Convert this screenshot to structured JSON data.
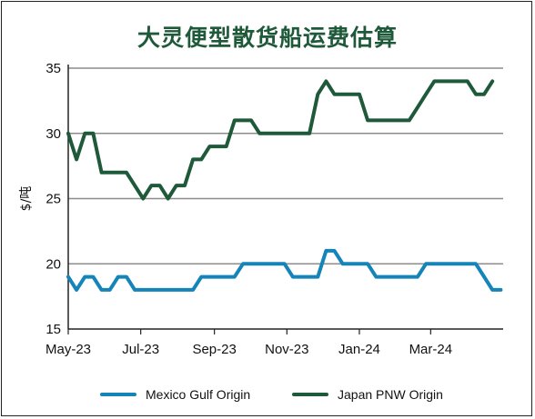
{
  "chart_data": {
    "type": "line",
    "title": "大灵便型散货船运费估算",
    "ylabel": "$/吨",
    "xlabel": "",
    "ylim": [
      15,
      35
    ],
    "yticks": [
      15,
      20,
      25,
      30,
      35
    ],
    "x_start": "2023-05-01",
    "x_end": "2024-05-01",
    "xticks": [
      {
        "date": "2023-05-01",
        "label": "May-23"
      },
      {
        "date": "2023-07-01",
        "label": "Jul-23"
      },
      {
        "date": "2023-09-01",
        "label": "Sep-23"
      },
      {
        "date": "2023-11-01",
        "label": "Nov-23"
      },
      {
        "date": "2024-01-01",
        "label": "Jan-24"
      },
      {
        "date": "2024-03-01",
        "label": "Mar-24"
      }
    ],
    "grid": "horizontal",
    "legend_position": "bottom",
    "series": [
      {
        "name": "Mexico Gulf Origin",
        "color": "#1584b8",
        "points": [
          [
            "2023-05-01",
            19
          ],
          [
            "2023-05-08",
            18
          ],
          [
            "2023-05-15",
            19
          ],
          [
            "2023-05-22",
            19
          ],
          [
            "2023-05-29",
            18
          ],
          [
            "2023-06-05",
            18
          ],
          [
            "2023-06-12",
            19
          ],
          [
            "2023-06-19",
            19
          ],
          [
            "2023-06-26",
            18
          ],
          [
            "2023-07-03",
            18
          ],
          [
            "2023-07-10",
            18
          ],
          [
            "2023-07-17",
            18
          ],
          [
            "2023-07-24",
            18
          ],
          [
            "2023-07-31",
            18
          ],
          [
            "2023-08-07",
            18
          ],
          [
            "2023-08-14",
            18
          ],
          [
            "2023-08-21",
            19
          ],
          [
            "2023-08-28",
            19
          ],
          [
            "2023-09-04",
            19
          ],
          [
            "2023-09-11",
            19
          ],
          [
            "2023-09-18",
            19
          ],
          [
            "2023-09-25",
            20
          ],
          [
            "2023-10-02",
            20
          ],
          [
            "2023-10-09",
            20
          ],
          [
            "2023-10-16",
            20
          ],
          [
            "2023-10-23",
            20
          ],
          [
            "2023-10-30",
            20
          ],
          [
            "2023-11-06",
            19
          ],
          [
            "2023-11-13",
            19
          ],
          [
            "2023-11-20",
            19
          ],
          [
            "2023-11-27",
            19
          ],
          [
            "2023-12-04",
            21
          ],
          [
            "2023-12-11",
            21
          ],
          [
            "2023-12-18",
            20
          ],
          [
            "2023-12-25",
            20
          ],
          [
            "2024-01-01",
            20
          ],
          [
            "2024-01-08",
            20
          ],
          [
            "2024-01-15",
            19
          ],
          [
            "2024-01-22",
            19
          ],
          [
            "2024-01-29",
            19
          ],
          [
            "2024-02-05",
            19
          ],
          [
            "2024-02-12",
            19
          ],
          [
            "2024-02-19",
            19
          ],
          [
            "2024-02-26",
            20
          ],
          [
            "2024-03-04",
            20
          ],
          [
            "2024-03-11",
            20
          ],
          [
            "2024-03-18",
            20
          ],
          [
            "2024-03-25",
            20
          ],
          [
            "2024-04-01",
            20
          ],
          [
            "2024-04-08",
            20
          ],
          [
            "2024-04-15",
            19
          ],
          [
            "2024-04-22",
            18
          ],
          [
            "2024-04-29",
            18
          ]
        ]
      },
      {
        "name": "Japan PNW Origin",
        "color": "#1e5a3a",
        "points": [
          [
            "2023-05-01",
            30
          ],
          [
            "2023-05-08",
            28
          ],
          [
            "2023-05-15",
            30
          ],
          [
            "2023-05-22",
            30
          ],
          [
            "2023-05-29",
            27
          ],
          [
            "2023-06-05",
            27
          ],
          [
            "2023-06-12",
            27
          ],
          [
            "2023-06-19",
            27
          ],
          [
            "2023-06-26",
            26
          ],
          [
            "2023-07-03",
            25
          ],
          [
            "2023-07-10",
            26
          ],
          [
            "2023-07-17",
            26
          ],
          [
            "2023-07-24",
            25
          ],
          [
            "2023-07-31",
            26
          ],
          [
            "2023-08-07",
            26
          ],
          [
            "2023-08-14",
            28
          ],
          [
            "2023-08-21",
            28
          ],
          [
            "2023-08-28",
            29
          ],
          [
            "2023-09-04",
            29
          ],
          [
            "2023-09-11",
            29
          ],
          [
            "2023-09-18",
            31
          ],
          [
            "2023-09-25",
            31
          ],
          [
            "2023-10-02",
            31
          ],
          [
            "2023-10-09",
            30
          ],
          [
            "2023-10-16",
            30
          ],
          [
            "2023-10-23",
            30
          ],
          [
            "2023-10-30",
            30
          ],
          [
            "2023-11-06",
            30
          ],
          [
            "2023-11-13",
            30
          ],
          [
            "2023-11-20",
            30
          ],
          [
            "2023-11-27",
            33
          ],
          [
            "2023-12-04",
            34
          ],
          [
            "2023-12-11",
            33
          ],
          [
            "2023-12-18",
            33
          ],
          [
            "2023-12-25",
            33
          ],
          [
            "2024-01-01",
            33
          ],
          [
            "2024-01-08",
            31
          ],
          [
            "2024-01-15",
            31
          ],
          [
            "2024-01-22",
            31
          ],
          [
            "2024-01-29",
            31
          ],
          [
            "2024-02-05",
            31
          ],
          [
            "2024-02-12",
            31
          ],
          [
            "2024-02-19",
            32
          ],
          [
            "2024-02-26",
            33
          ],
          [
            "2024-03-04",
            34
          ],
          [
            "2024-03-11",
            34
          ],
          [
            "2024-03-18",
            34
          ],
          [
            "2024-03-25",
            34
          ],
          [
            "2024-04-01",
            34
          ],
          [
            "2024-04-08",
            33
          ],
          [
            "2024-04-15",
            33
          ],
          [
            "2024-04-22",
            34
          ]
        ]
      }
    ]
  }
}
